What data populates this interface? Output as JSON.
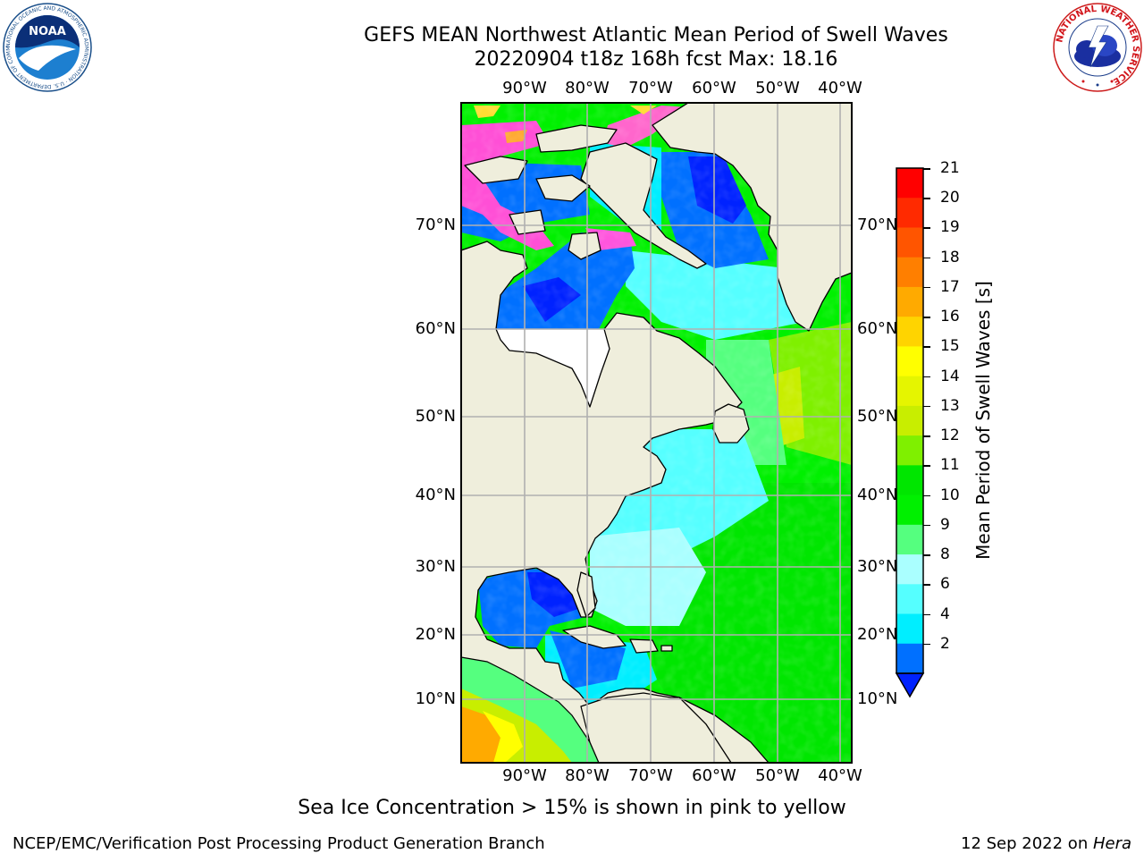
{
  "header": {
    "title_line1": "GEFS MEAN Northwest Atlantic Mean Period of Swell Waves",
    "title_line2": "20220904 t18z 168h fcst   Max: 18.16"
  },
  "logos": {
    "noaa_text": "NOAA",
    "noaa_ring": "NATIONAL OCEANIC AND ATMOSPHERIC ADMINISTRATION · U.S. DEPARTMENT OF COMMERCE",
    "nws_ring": "NATIONAL WEATHER SERVICE"
  },
  "map": {
    "lon_labels": [
      "90°W",
      "80°W",
      "70°W",
      "60°W",
      "50°W",
      "40°W"
    ],
    "lat_labels": [
      "70°N",
      "60°N",
      "50°N",
      "40°N",
      "30°N",
      "20°N",
      "10°N"
    ],
    "colors": {
      "land": "#efeedc",
      "grid": "#b0b0b0",
      "no_data": "#ffffff"
    }
  },
  "colorbar": {
    "label": "Mean Period of Swell Waves [s]",
    "ticks": [
      "21",
      "20",
      "19",
      "18",
      "17",
      "16",
      "15",
      "14",
      "13",
      "12",
      "11",
      "10",
      "9",
      "8",
      "6",
      "4",
      "2"
    ],
    "bins": [
      {
        "range": "20-21",
        "color": "#ff0000"
      },
      {
        "range": "19-20",
        "color": "#ff2a00"
      },
      {
        "range": "18-19",
        "color": "#ff5500"
      },
      {
        "range": "17-18",
        "color": "#ff7f00"
      },
      {
        "range": "16-17",
        "color": "#ffaa00"
      },
      {
        "range": "15-16",
        "color": "#ffd400"
      },
      {
        "range": "14-15",
        "color": "#ffff00"
      },
      {
        "range": "13-14",
        "color": "#e5f500"
      },
      {
        "range": "12-13",
        "color": "#c8ee00"
      },
      {
        "range": "11-12",
        "color": "#7ff000"
      },
      {
        "range": "10-11",
        "color": "#00e600"
      },
      {
        "range": "9-10",
        "color": "#00f000"
      },
      {
        "range": "8-9",
        "color": "#55ff7f"
      },
      {
        "range": "6-8",
        "color": "#aaffff"
      },
      {
        "range": "4-6",
        "color": "#55ffff"
      },
      {
        "range": "2-4",
        "color": "#00eeff"
      },
      {
        "range": "<2",
        "color": "#0070ff"
      }
    ],
    "under_color": "#0022ff"
  },
  "caption": "Sea Ice Concentration > 15% is shown in pink to yellow",
  "footer": {
    "left": "NCEP/EMC/Verification Post Processing Product Generation Branch",
    "right_prefix": "12 Sep 2022 on ",
    "right_host": "Hera"
  }
}
